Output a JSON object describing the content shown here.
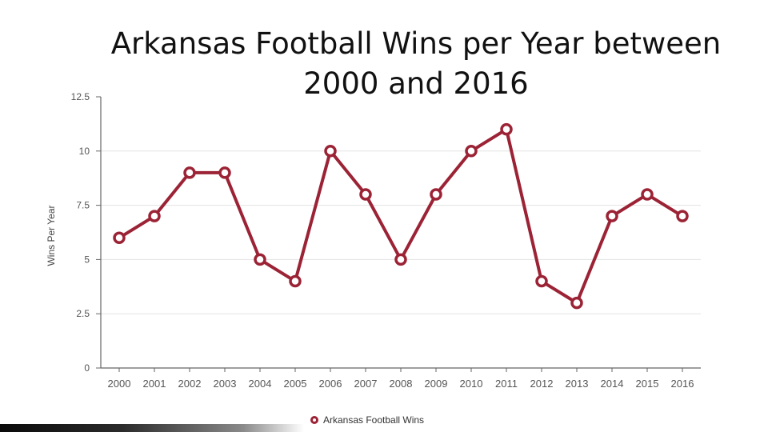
{
  "slide": {
    "title": "Arkansas Football Wins per Year between 2000 and 2016"
  },
  "colors": {
    "series": "#9b2335",
    "grid": "#e3e3e3",
    "axis": "#666666",
    "tick_label": "#555555"
  },
  "chart_data": {
    "type": "line",
    "title": "",
    "xlabel": "",
    "ylabel": "Wins Per Year",
    "categories": [
      "2000",
      "2001",
      "2002",
      "2003",
      "2004",
      "2005",
      "2006",
      "2007",
      "2008",
      "2009",
      "2010",
      "2011",
      "2012",
      "2013",
      "2014",
      "2015",
      "2016"
    ],
    "series": [
      {
        "name": "Arkansas Football Wins",
        "values": [
          6,
          7,
          9,
          9,
          5,
          4,
          10,
          8,
          5,
          8,
          10,
          11,
          4,
          3,
          7,
          8,
          7
        ]
      }
    ],
    "ylim": [
      0,
      12.5
    ],
    "yticks": [
      "0",
      "2.5",
      "5",
      "7.5",
      "10",
      "12.5"
    ],
    "grid": true,
    "legend": "bottom"
  }
}
